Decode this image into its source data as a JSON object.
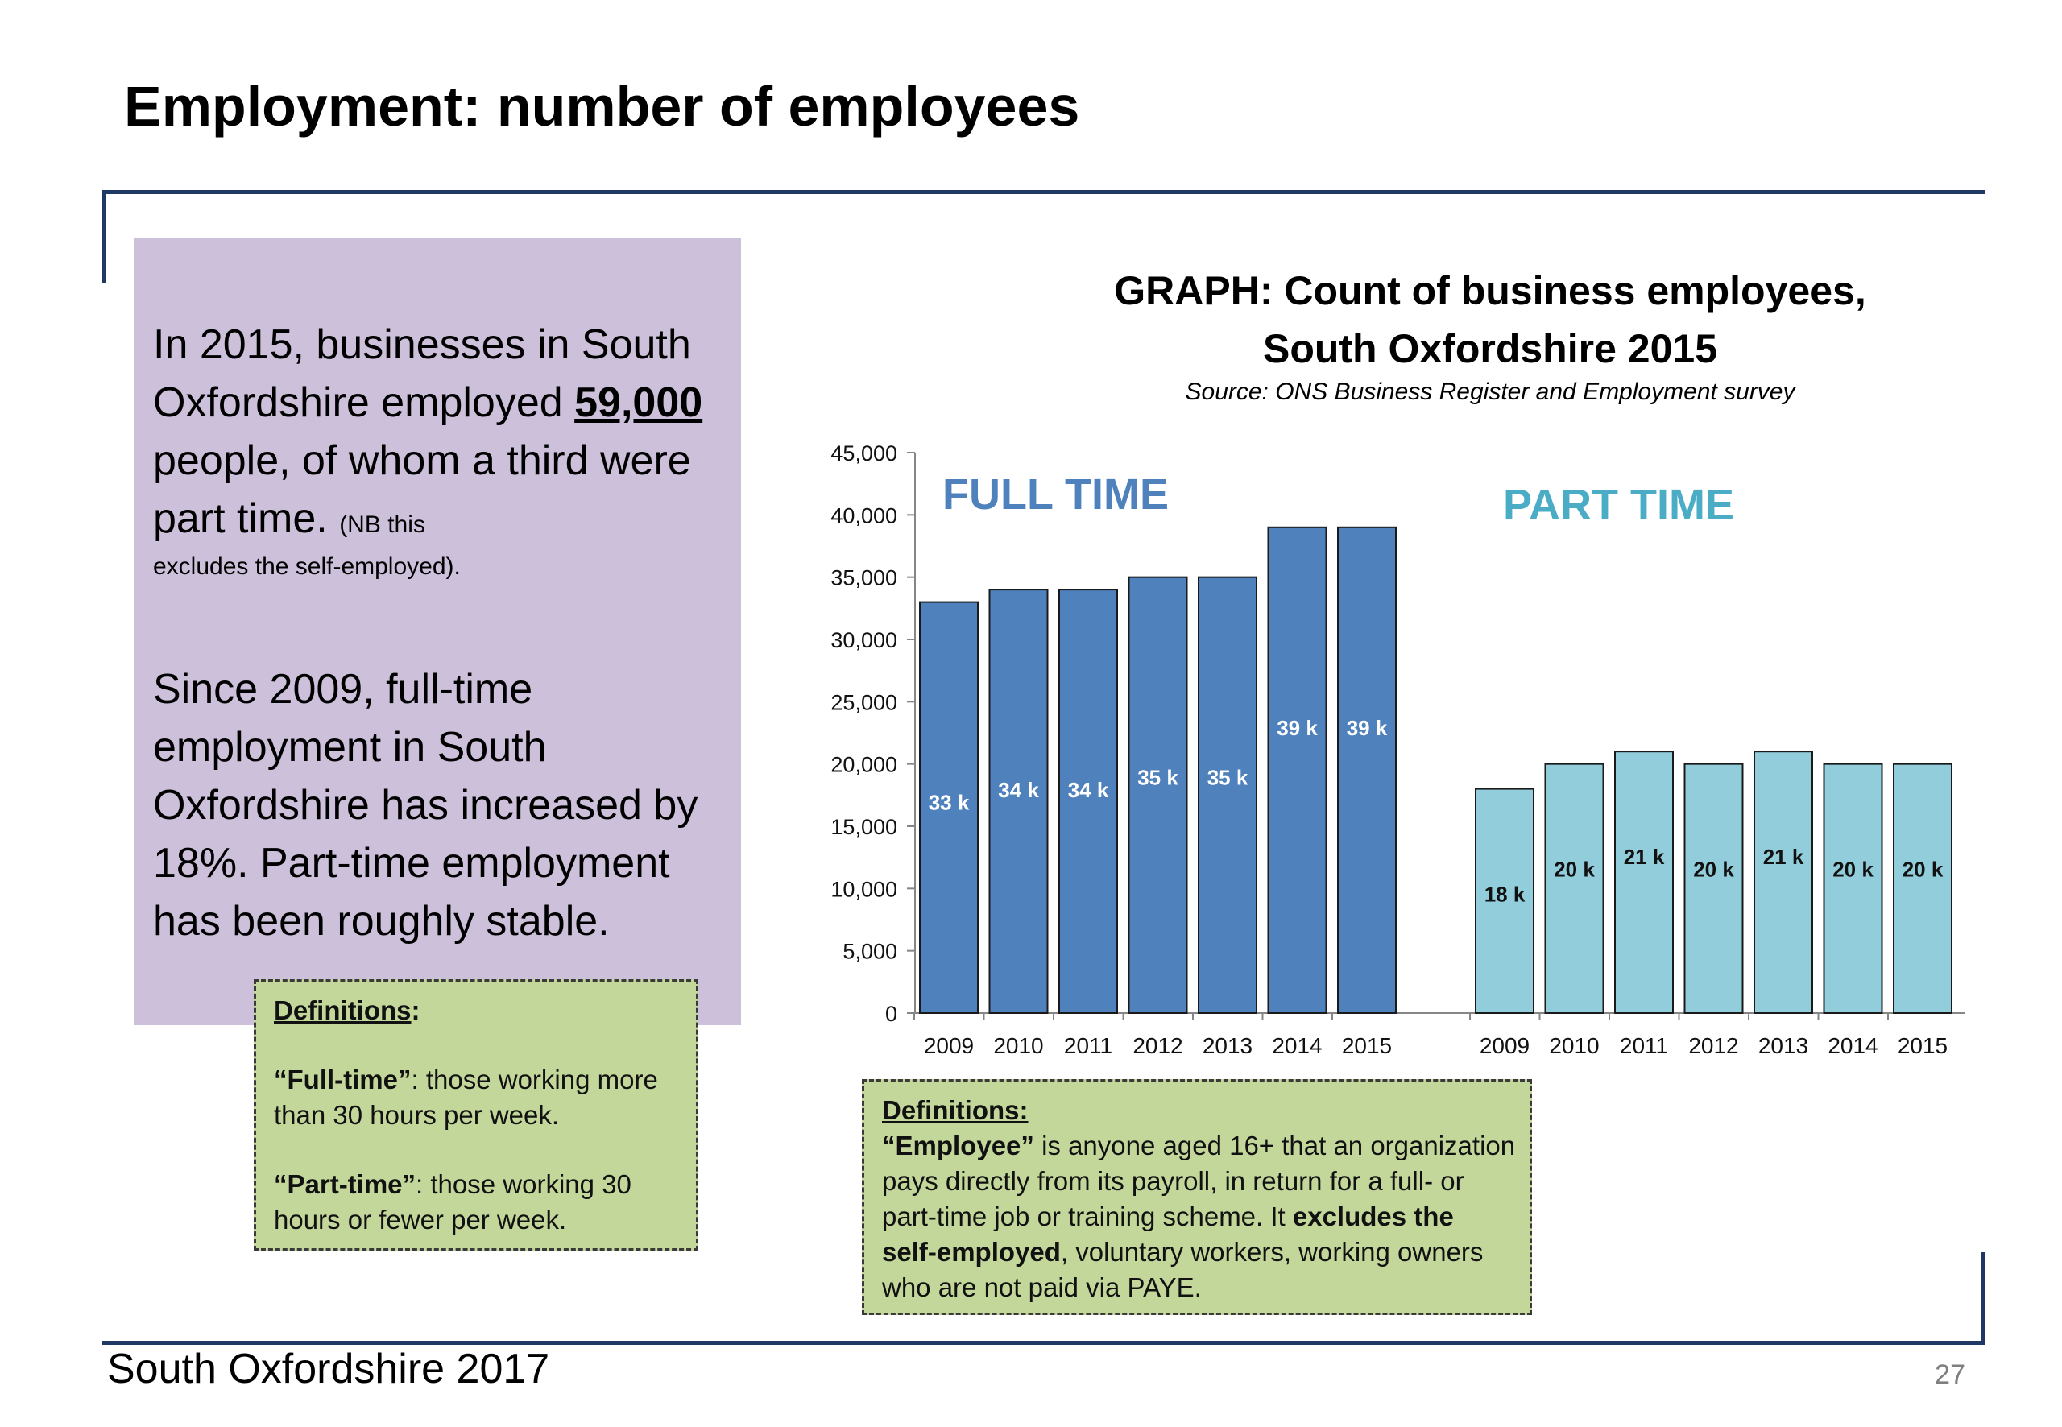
{
  "slide": {
    "title": "Employment: number of employees",
    "footer": "South Oxfordshire  2017",
    "page_number": "27"
  },
  "panel": {
    "p1_a": "In 2015, businesses in South Oxfordshire employed",
    "p1_highlight": "59,000",
    "p1_b": "people, of whom a third were part time.",
    "p1_note_a": "(NB this",
    "p1_note_b": "excludes the self-employed).",
    "p2": "Since 2009, full-time employment in South Oxfordshire has increased by 18%. Part-time employment has been roughly stable."
  },
  "definitions_left": {
    "heading": "Definitions",
    "ft_term": "“Full-time”",
    "ft_text_a": ": those working more",
    "ft_text_b": "than 30 hours per week.",
    "pt_term": "“Part-time”",
    "pt_text_a": ": those working 30",
    "pt_text_b": "hours or fewer per week."
  },
  "definitions_right": {
    "heading": "Definitions:",
    "term": "“Employee”",
    "line1": " is anyone aged 16+ that an organization",
    "line2": "pays directly from its payroll, in return for a full- or",
    "line3a": "part-time job or training scheme.  It ",
    "line3b": "excludes the",
    "line4a": "self-employed",
    "line4b": ", voluntary workers, working owners",
    "line5": "who are not paid via PAYE."
  },
  "chart_data": {
    "type": "bar",
    "title_line1": "GRAPH: Count of business employees,",
    "title_line2": "South Oxfordshire 2015",
    "source": "Source: ONS Business Register and Employment survey",
    "ylim": [
      0,
      45000
    ],
    "yticks": [
      0,
      5000,
      10000,
      15000,
      20000,
      25000,
      30000,
      35000,
      40000,
      45000
    ],
    "ytick_labels": [
      "0",
      "5,000",
      "10,000",
      "15,000",
      "20,000",
      "25,000",
      "30,000",
      "35,000",
      "40,000",
      "45,000"
    ],
    "categories": [
      "2009",
      "2010",
      "2011",
      "2012",
      "2013",
      "2014",
      "2015"
    ],
    "series": [
      {
        "name": "FULL TIME",
        "color": "#4f81bd",
        "label_color": "#4f81bd",
        "values": [
          33000,
          34000,
          34000,
          35000,
          35000,
          39000,
          39000
        ],
        "data_labels": [
          "33 k",
          "34 k",
          "34 k",
          "35 k",
          "35 k",
          "39 k",
          "39 k"
        ]
      },
      {
        "name": "PART TIME",
        "color": "#92cddc",
        "label_color": "#4bacc6",
        "values": [
          18000,
          20000,
          21000,
          20000,
          21000,
          20000,
          20000
        ],
        "data_labels": [
          "18 k",
          "20 k",
          "21 k",
          "20 k",
          "21 k",
          "20 k",
          "20 k"
        ]
      }
    ],
    "grid": false
  }
}
